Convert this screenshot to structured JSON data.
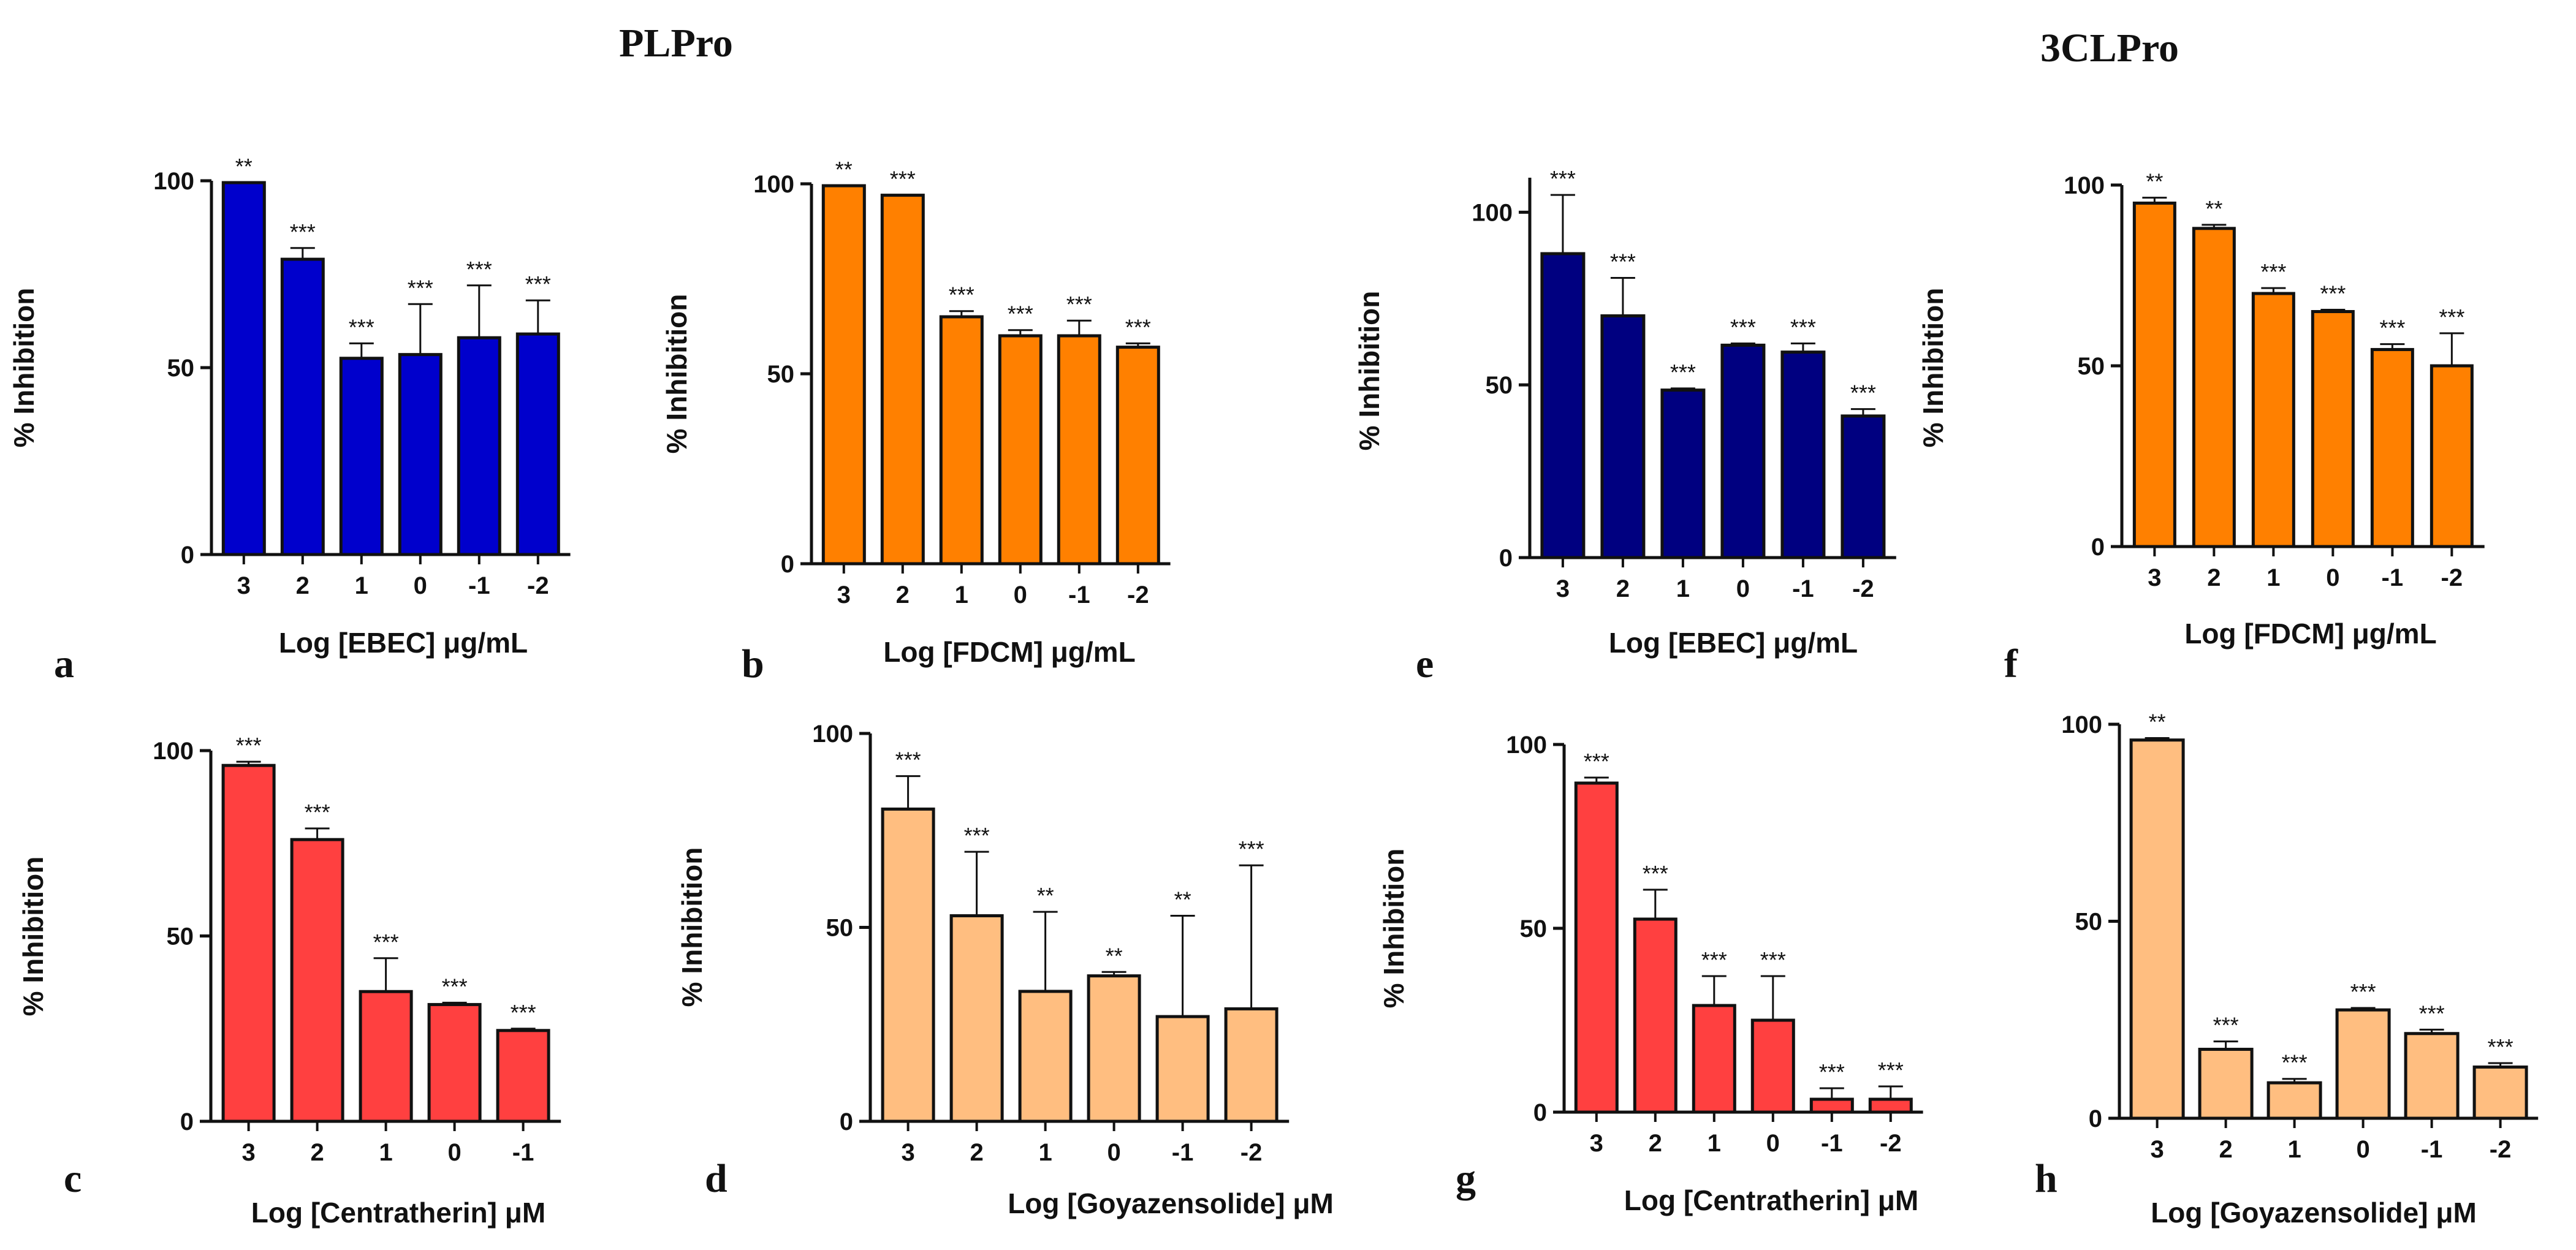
{
  "groups": [
    {
      "id": "plpro",
      "title": "PLPro"
    },
    {
      "id": "3clpro",
      "title": "3CLPro"
    }
  ],
  "chart_data": [
    {
      "panel": "a",
      "group": "PLPro",
      "type": "bar",
      "color": "#0000CC",
      "categories": [
        "3",
        "2",
        "1",
        "0",
        "-1",
        "-2"
      ],
      "values": [
        99.5,
        79,
        52.5,
        53.5,
        58,
        59
      ],
      "errors": [
        0,
        3,
        4,
        13.5,
        14,
        9
      ],
      "significance": [
        "**",
        "***",
        "***",
        "***",
        "***",
        "***"
      ],
      "xlabel": "Log [EBEC] μg/mL",
      "ylabel": "% Inhibition",
      "ylim": [
        0,
        100
      ],
      "yticks": [
        0,
        50,
        100
      ]
    },
    {
      "panel": "b",
      "group": "PLPro",
      "type": "bar",
      "color": "#FF8000",
      "categories": [
        "3",
        "2",
        "1",
        "0",
        "-1",
        "-2"
      ],
      "values": [
        99.5,
        97,
        65,
        60,
        60,
        57
      ],
      "errors": [
        0,
        0,
        1.5,
        1.5,
        4,
        1
      ],
      "significance": [
        "**",
        "***",
        "***",
        "***",
        "***",
        "***"
      ],
      "xlabel": "Log [FDCM] μg/mL",
      "ylabel": "% Inhibition",
      "ylim": [
        0,
        100
      ],
      "yticks": [
        0,
        50,
        100
      ]
    },
    {
      "panel": "c",
      "group": "PLPro",
      "type": "bar",
      "color": "#FF4040",
      "categories": [
        "3",
        "2",
        "1",
        "0",
        "-1"
      ],
      "values": [
        96,
        76,
        35,
        31.5,
        24.5
      ],
      "errors": [
        1,
        3,
        9,
        0.5,
        0.5
      ],
      "significance": [
        "***",
        "***",
        "***",
        "***",
        "***"
      ],
      "xlabel": "Log [Centratherin] μM",
      "ylabel": "% Inhibition",
      "ylim": [
        0,
        100
      ],
      "yticks": [
        0,
        50,
        100
      ]
    },
    {
      "panel": "d",
      "group": "PLPro",
      "type": "bar",
      "color": "#FFBE80",
      "categories": [
        "3",
        "2",
        "1",
        "0",
        "-1",
        "-2"
      ],
      "values": [
        80.5,
        53,
        33.5,
        37.5,
        27,
        29
      ],
      "errors": [
        8.5,
        16.5,
        20.5,
        1,
        26,
        37
      ],
      "significance": [
        "***",
        "***",
        "**",
        "**",
        "**",
        "***"
      ],
      "xlabel": "Log [Goyazensolide] μM",
      "ylabel": "% Inhibition",
      "ylim": [
        0,
        100
      ],
      "yticks": [
        0,
        50,
        100
      ]
    },
    {
      "panel": "e",
      "group": "3CLPro",
      "type": "bar",
      "color": "#000080",
      "categories": [
        "3",
        "2",
        "1",
        "0",
        "-1",
        "-2"
      ],
      "values": [
        88,
        70,
        48.5,
        61.5,
        59.5,
        41
      ],
      "errors": [
        17,
        11,
        0.5,
        0.5,
        2.5,
        2
      ],
      "significance": [
        "***",
        "***",
        "***",
        "***",
        "***",
        "***"
      ],
      "xlabel": "Log [EBEC] μg/mL",
      "ylabel": "% Inhibition",
      "ylim": [
        0,
        110
      ],
      "yticks": [
        0,
        50,
        100
      ]
    },
    {
      "panel": "f",
      "group": "3CLPro",
      "type": "bar",
      "color": "#FF8000",
      "categories": [
        "3",
        "2",
        "1",
        "0",
        "-1",
        "-2"
      ],
      "values": [
        95,
        88,
        70,
        65,
        54.5,
        50
      ],
      "errors": [
        1.5,
        1,
        1.5,
        0.5,
        1.5,
        9
      ],
      "significance": [
        "**",
        "**",
        "***",
        "***",
        "***",
        "***"
      ],
      "xlabel": "Log [FDCM] μg/mL",
      "ylabel": "% Inhibition",
      "ylim": [
        0,
        100
      ],
      "yticks": [
        0,
        50,
        100
      ]
    },
    {
      "panel": "g",
      "group": "3CLPro",
      "type": "bar",
      "color": "#FF4040",
      "categories": [
        "3",
        "2",
        "1",
        "0",
        "-1",
        "-2"
      ],
      "values": [
        89.5,
        52.5,
        29,
        25,
        3.5,
        3.5
      ],
      "errors": [
        1.5,
        8,
        8,
        12,
        3,
        3.5
      ],
      "significance": [
        "***",
        "***",
        "***",
        "***",
        "***",
        "***"
      ],
      "xlabel": "Log [Centratherin] μM",
      "ylabel": "% Inhibition",
      "ylim": [
        0,
        100
      ],
      "yticks": [
        0,
        50,
        100
      ]
    },
    {
      "panel": "h",
      "group": "3CLPro",
      "type": "bar",
      "color": "#FFBE80",
      "categories": [
        "3",
        "2",
        "1",
        "0",
        "-1",
        "-2"
      ],
      "values": [
        96,
        17.5,
        9,
        27.5,
        21.5,
        13
      ],
      "errors": [
        0.5,
        2,
        1,
        0.5,
        1,
        1
      ],
      "significance": [
        "**",
        "***",
        "***",
        "***",
        "***",
        "***"
      ],
      "xlabel": "Log [Goyazensolide] μM",
      "ylabel": "",
      "ylim": [
        0,
        100
      ],
      "yticks": [
        0,
        50,
        100
      ]
    }
  ]
}
